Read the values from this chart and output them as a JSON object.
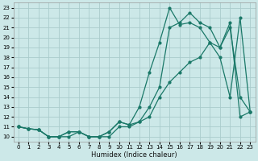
{
  "background_color": "#cce8e8",
  "grid_color": "#aacccc",
  "line_color": "#1a7868",
  "xlabel": "Humidex (Indice chaleur)",
  "xlim": [
    -0.5,
    23.5
  ],
  "ylim": [
    9.5,
    23.5
  ],
  "yticks": [
    10,
    11,
    12,
    13,
    14,
    15,
    16,
    17,
    18,
    19,
    20,
    21,
    22,
    23
  ],
  "xticks": [
    0,
    1,
    2,
    3,
    4,
    5,
    6,
    7,
    8,
    9,
    10,
    11,
    12,
    13,
    14,
    15,
    16,
    17,
    18,
    19,
    20,
    21,
    22,
    23
  ],
  "line1_x": [
    0,
    1,
    2,
    3,
    4,
    5,
    6,
    7,
    8,
    9,
    10,
    11,
    12,
    13,
    14,
    15,
    16,
    17,
    18,
    19,
    20,
    21,
    22,
    23
  ],
  "line1_y": [
    11,
    10.8,
    10.7,
    10.0,
    10.0,
    10.5,
    10.5,
    10.0,
    10.0,
    10.5,
    11.5,
    11.2,
    13.0,
    16.5,
    19.5,
    23.0,
    21.3,
    21.5,
    21.0,
    19.5,
    18.0,
    14.0,
    22.0,
    12.5
  ],
  "line2_x": [
    0,
    1,
    2,
    3,
    4,
    5,
    6,
    7,
    8,
    9,
    10,
    11,
    12,
    13,
    14,
    15,
    16,
    17,
    18,
    19,
    20,
    21,
    22,
    23
  ],
  "line2_y": [
    11,
    10.8,
    10.7,
    10.0,
    10.0,
    10.5,
    10.5,
    10.0,
    10.0,
    10.5,
    11.5,
    11.2,
    11.5,
    13.0,
    15.0,
    21.0,
    21.5,
    22.5,
    21.5,
    21.0,
    19.0,
    21.0,
    14.0,
    12.5
  ],
  "line3_x": [
    0,
    1,
    2,
    3,
    4,
    5,
    6,
    7,
    8,
    9,
    10,
    11,
    12,
    13,
    14,
    15,
    16,
    17,
    18,
    19,
    20,
    21,
    22,
    23
  ],
  "line3_y": [
    11,
    10.8,
    10.7,
    10.0,
    10.0,
    10.0,
    10.5,
    10.0,
    10.0,
    10.0,
    11.0,
    11.0,
    11.5,
    12.0,
    14.0,
    15.5,
    16.5,
    17.5,
    18.0,
    19.5,
    19.0,
    21.5,
    12.0,
    12.5
  ]
}
